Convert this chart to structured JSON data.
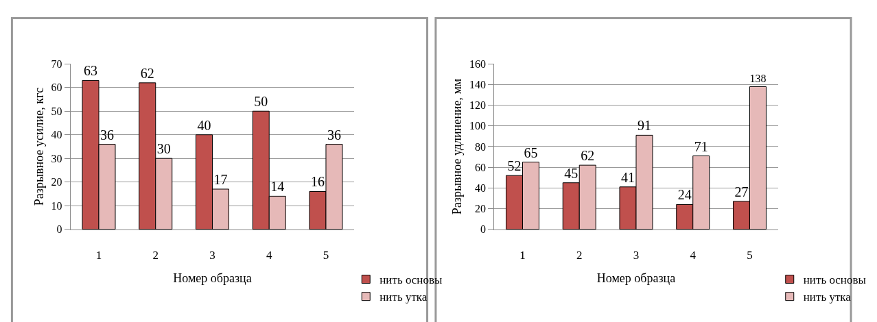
{
  "chart_data": [
    {
      "type": "bar",
      "xlabel": "Номер образца",
      "ylabel": "Разрывное усилие, кгс",
      "categories": [
        "1",
        "2",
        "3",
        "4",
        "5"
      ],
      "series": [
        {
          "name": "нить основы",
          "color": "#c0504d",
          "values": [
            63,
            62,
            40,
            50,
            16
          ]
        },
        {
          "name": "нить утка",
          "color": "#e6b9b8",
          "values": [
            36,
            30,
            17,
            14,
            36
          ]
        }
      ],
      "ylim": [
        0,
        70
      ],
      "yticks": [
        0,
        10,
        20,
        30,
        40,
        50,
        60,
        70
      ],
      "grid": "y",
      "legend": "bottom right",
      "data_labels": true
    },
    {
      "type": "bar",
      "xlabel": "Номер образца",
      "ylabel": "Разрывное удлинение, мм",
      "categories": [
        "1",
        "2",
        "3",
        "4",
        "5"
      ],
      "series": [
        {
          "name": "нить основы",
          "color": "#c0504d",
          "values": [
            52,
            45,
            41,
            24,
            27
          ]
        },
        {
          "name": "нить утка",
          "color": "#e6b9b8",
          "values": [
            65,
            62,
            91,
            71,
            138
          ]
        }
      ],
      "ylim": [
        0,
        160
      ],
      "yticks": [
        0,
        20,
        40,
        60,
        80,
        100,
        120,
        140,
        160
      ],
      "grid": "y",
      "legend": "bottom right",
      "data_labels": true
    }
  ]
}
